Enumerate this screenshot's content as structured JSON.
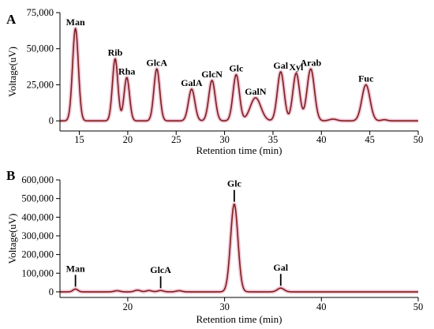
{
  "colors": {
    "trace": "#7a1f1f",
    "trace_glow": "#f3c6d6",
    "axis": "#000000"
  },
  "chart_data": [
    {
      "type": "line",
      "panel": "A",
      "xlabel": "Retention time (min)",
      "ylabel": "Voltage(uV)",
      "xlim": [
        13,
        50
      ],
      "ylim": [
        -7000,
        75000
      ],
      "x_ticks": [
        15,
        20,
        25,
        30,
        35,
        40,
        45,
        50
      ],
      "x_tick_labels": [
        "15",
        "20",
        "25",
        "30",
        "35",
        "40",
        "45",
        "50"
      ],
      "y_ticks": [
        0,
        25000,
        50000,
        75000
      ],
      "y_tick_labels": [
        "0",
        "25,000",
        "50,000",
        "75,000"
      ],
      "baseline": 0,
      "peaks": [
        {
          "label": "Man",
          "rt": 14.6,
          "height": 64000,
          "width": 0.3
        },
        {
          "label": "Rib",
          "rt": 18.7,
          "height": 43000,
          "width": 0.28
        },
        {
          "label": "Rha",
          "rt": 19.9,
          "height": 30000,
          "width": 0.28
        },
        {
          "label": "GlcA",
          "rt": 23.0,
          "height": 36000,
          "width": 0.3
        },
        {
          "label": "GalA",
          "rt": 26.6,
          "height": 22000,
          "width": 0.33
        },
        {
          "label": "GlcN",
          "rt": 28.7,
          "height": 28000,
          "width": 0.33
        },
        {
          "label": "Glc",
          "rt": 31.2,
          "height": 32000,
          "width": 0.33
        },
        {
          "label": "GalN",
          "rt": 33.2,
          "height": 16000,
          "width": 0.55
        },
        {
          "label": "Gal",
          "rt": 35.8,
          "height": 34000,
          "width": 0.35
        },
        {
          "label": "Xyl",
          "rt": 37.4,
          "height": 33000,
          "width": 0.35
        },
        {
          "label": "Arab",
          "rt": 38.9,
          "height": 36000,
          "width": 0.38
        },
        {
          "label": "Fuc",
          "rt": 44.6,
          "height": 25000,
          "width": 0.42
        }
      ],
      "minor_peaks": [
        {
          "rt": 41.2,
          "height": 1200,
          "width": 0.4
        },
        {
          "rt": 46.5,
          "height": 800,
          "width": 0.3
        }
      ]
    },
    {
      "type": "line",
      "panel": "B",
      "xlabel": "Retention time (min)",
      "ylabel": "Voltage(uV)",
      "xlim": [
        13,
        50
      ],
      "ylim": [
        -30000,
        600000
      ],
      "x_ticks": [
        20,
        30,
        40,
        50
      ],
      "x_tick_labels": [
        "20",
        "30",
        "40",
        "50"
      ],
      "y_ticks": [
        0,
        100000,
        200000,
        300000,
        400000,
        500000,
        600000
      ],
      "y_tick_labels": [
        "0",
        "100,000",
        "200,000",
        "300,000",
        "400,000",
        "500,000",
        "600,000"
      ],
      "baseline": 0,
      "peaks": [
        {
          "label": "Man",
          "rt": 14.6,
          "height": 15000,
          "width": 0.25
        },
        {
          "label": "GlcA",
          "rt": 23.4,
          "height": 7000,
          "width": 0.3
        },
        {
          "label": "Glc",
          "rt": 31.0,
          "height": 470000,
          "width": 0.38
        },
        {
          "label": "Gal",
          "rt": 35.8,
          "height": 20000,
          "width": 0.35
        }
      ],
      "minor_peaks": [
        {
          "rt": 18.9,
          "height": 6000,
          "width": 0.3
        },
        {
          "rt": 21.0,
          "height": 9000,
          "width": 0.3
        },
        {
          "rt": 22.2,
          "height": 7000,
          "width": 0.3
        },
        {
          "rt": 25.3,
          "height": 6000,
          "width": 0.3
        }
      ]
    }
  ]
}
